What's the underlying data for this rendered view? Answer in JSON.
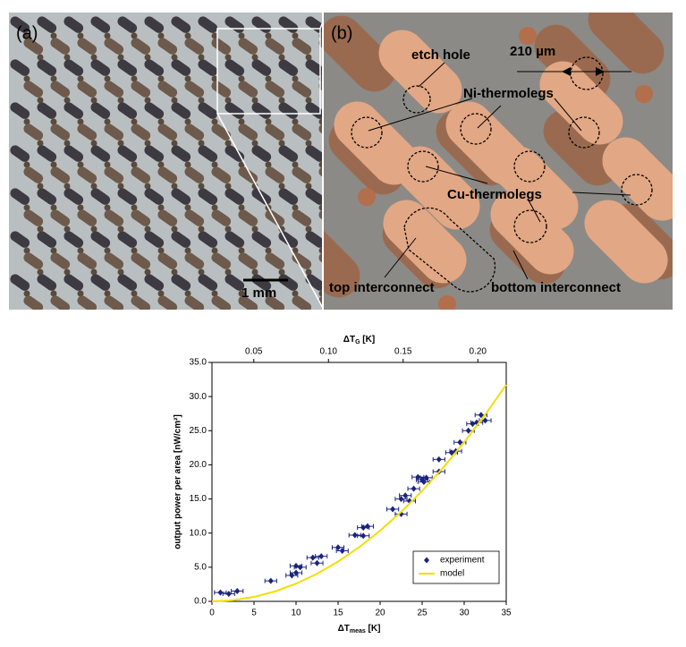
{
  "figure": {
    "panel_a": {
      "label": "(a)",
      "scale_bar": "1 mm"
    },
    "panel_b": {
      "label": "(b)",
      "annotations": [
        "etch hole",
        "210 µm",
        "Ni-thermolegs",
        "Cu-thermolegs",
        "top interconnect",
        "bottom interconnect"
      ]
    }
  },
  "chart_data": {
    "type": "scatter",
    "x_label": {
      "main": "ΔT",
      "sub": "meas",
      "unit": " [K]"
    },
    "x2_label": {
      "main": "ΔT",
      "sub": "G",
      "unit": " [K]"
    },
    "y_label": "output power per area [nW/cm²]",
    "xlim": [
      0,
      35
    ],
    "xticks": [
      0,
      5,
      10,
      15,
      20,
      25,
      30,
      35
    ],
    "x2lim": [
      0.022,
      0.219
    ],
    "x2ticks": [
      {
        "value": 0.05,
        "label": "0.05"
      },
      {
        "value": 0.1,
        "label": "0.10"
      },
      {
        "value": 0.15,
        "label": "0.15"
      },
      {
        "value": 0.2,
        "label": "0.20"
      }
    ],
    "ylim": [
      0,
      35
    ],
    "yticks": [
      {
        "value": 0,
        "label": "0.0"
      },
      {
        "value": 5,
        "label": "5.0"
      },
      {
        "value": 10,
        "label": "10.0"
      },
      {
        "value": 15,
        "label": "15.0"
      },
      {
        "value": 20,
        "label": "20.0"
      },
      {
        "value": 25,
        "label": "25.0"
      },
      {
        "value": 30,
        "label": "30.0"
      },
      {
        "value": 35,
        "label": "35.0"
      }
    ],
    "legend": "lower right",
    "series": [
      {
        "name": "experiment",
        "color": "#1a237e",
        "x_error": 0.7,
        "x": [
          1,
          2,
          3,
          7,
          9.5,
          10,
          10,
          10.5,
          12,
          12.5,
          13,
          15,
          15.5,
          17,
          18,
          18,
          18.5,
          21.5,
          22.5,
          22.5,
          23,
          23.5,
          24,
          24.5,
          25,
          25.2,
          25.5,
          27,
          27,
          28.5,
          29,
          29.5,
          30.5,
          31,
          31.5,
          32,
          32.5
        ],
        "values": [
          1.3,
          1.1,
          1.5,
          3.0,
          3.8,
          4.2,
          5.2,
          5.0,
          6.4,
          5.6,
          6.6,
          7.9,
          7.4,
          9.7,
          9.6,
          10.8,
          11.0,
          13.5,
          12.8,
          15.0,
          15.5,
          14.7,
          16.5,
          18.2,
          17.8,
          17.5,
          18.1,
          19.0,
          20.8,
          21.8,
          22.0,
          23.3,
          25.0,
          26.0,
          26.2,
          27.3,
          26.5
        ]
      },
      {
        "name": "model",
        "color": "#f0e000",
        "line": true,
        "x": [
          0,
          2.5,
          5,
          7.5,
          10,
          12.5,
          15,
          17.5,
          20,
          22.5,
          25,
          27.5,
          30,
          32.5,
          35
        ],
        "values": [
          0,
          0.16,
          0.65,
          1.46,
          2.59,
          4.05,
          5.83,
          7.93,
          10.36,
          13.11,
          16.19,
          19.59,
          23.31,
          27.36,
          31.73
        ]
      }
    ]
  }
}
